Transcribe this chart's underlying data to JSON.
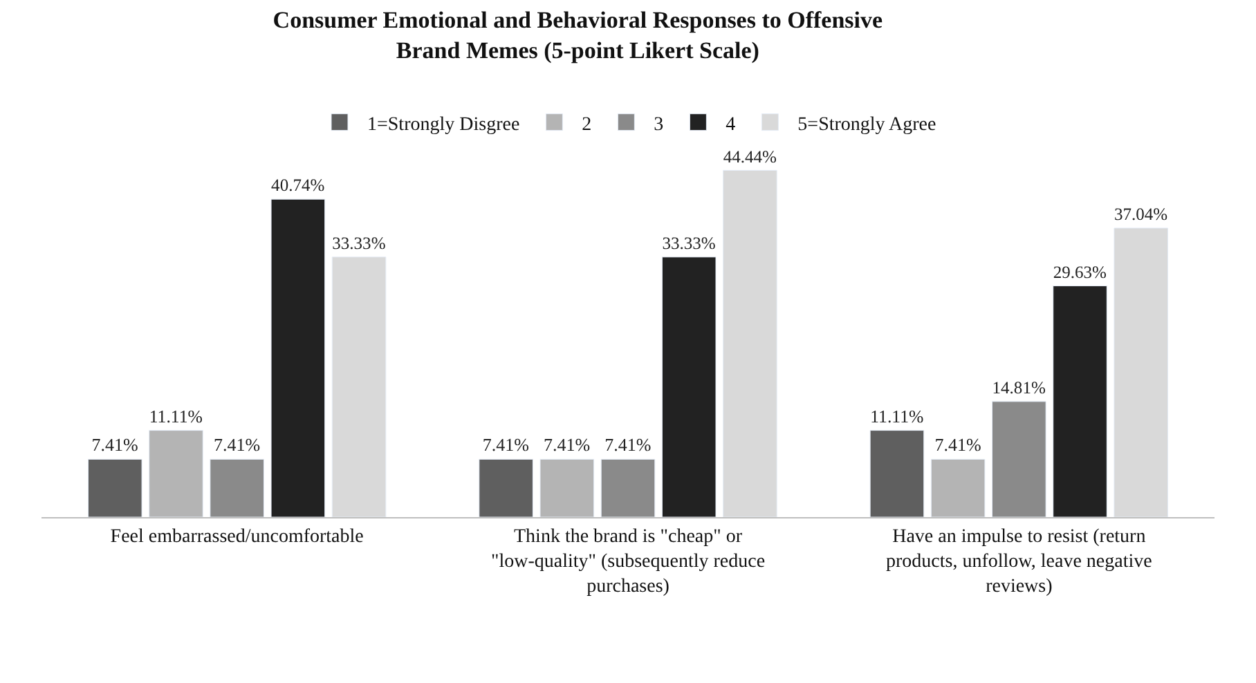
{
  "chart_data": {
    "type": "bar",
    "title": "Consumer Emotional and Behavioral Responses to Offensive Brand Memes (5-point Likert Scale)",
    "categories": [
      "Feel embarrassed/uncomfortable",
      "Think the brand is \"cheap\" or \"low-quality\" (subsequently reduce purchases)",
      "Have an impulse to resist (return products, unfollow, leave negative reviews)"
    ],
    "series": [
      {
        "name": "1=Strongly Disgree",
        "color": "#5f5f5f",
        "values": [
          7.41,
          7.41,
          11.11
        ],
        "value_labels": [
          "7.41%",
          "7.41%",
          "11.11%"
        ]
      },
      {
        "name": "2",
        "color": "#b4b4b4",
        "values": [
          11.11,
          7.41,
          7.41
        ],
        "value_labels": [
          "11.11%",
          "7.41%",
          "7.41%"
        ]
      },
      {
        "name": "3",
        "color": "#8a8a8a",
        "values": [
          7.41,
          7.41,
          14.81
        ],
        "value_labels": [
          "7.41%",
          "7.41%",
          "14.81%"
        ]
      },
      {
        "name": "4",
        "color": "#222222",
        "values": [
          40.74,
          33.33,
          29.63
        ],
        "value_labels": [
          "40.74%",
          "33.33%",
          "29.63%"
        ]
      },
      {
        "name": "5=Strongly Agree",
        "color": "#d9d9d9",
        "values": [
          33.33,
          44.44,
          37.04
        ],
        "value_labels": [
          "33.33%",
          "44.44%",
          "37.04%"
        ]
      }
    ],
    "legend": "top"
  }
}
